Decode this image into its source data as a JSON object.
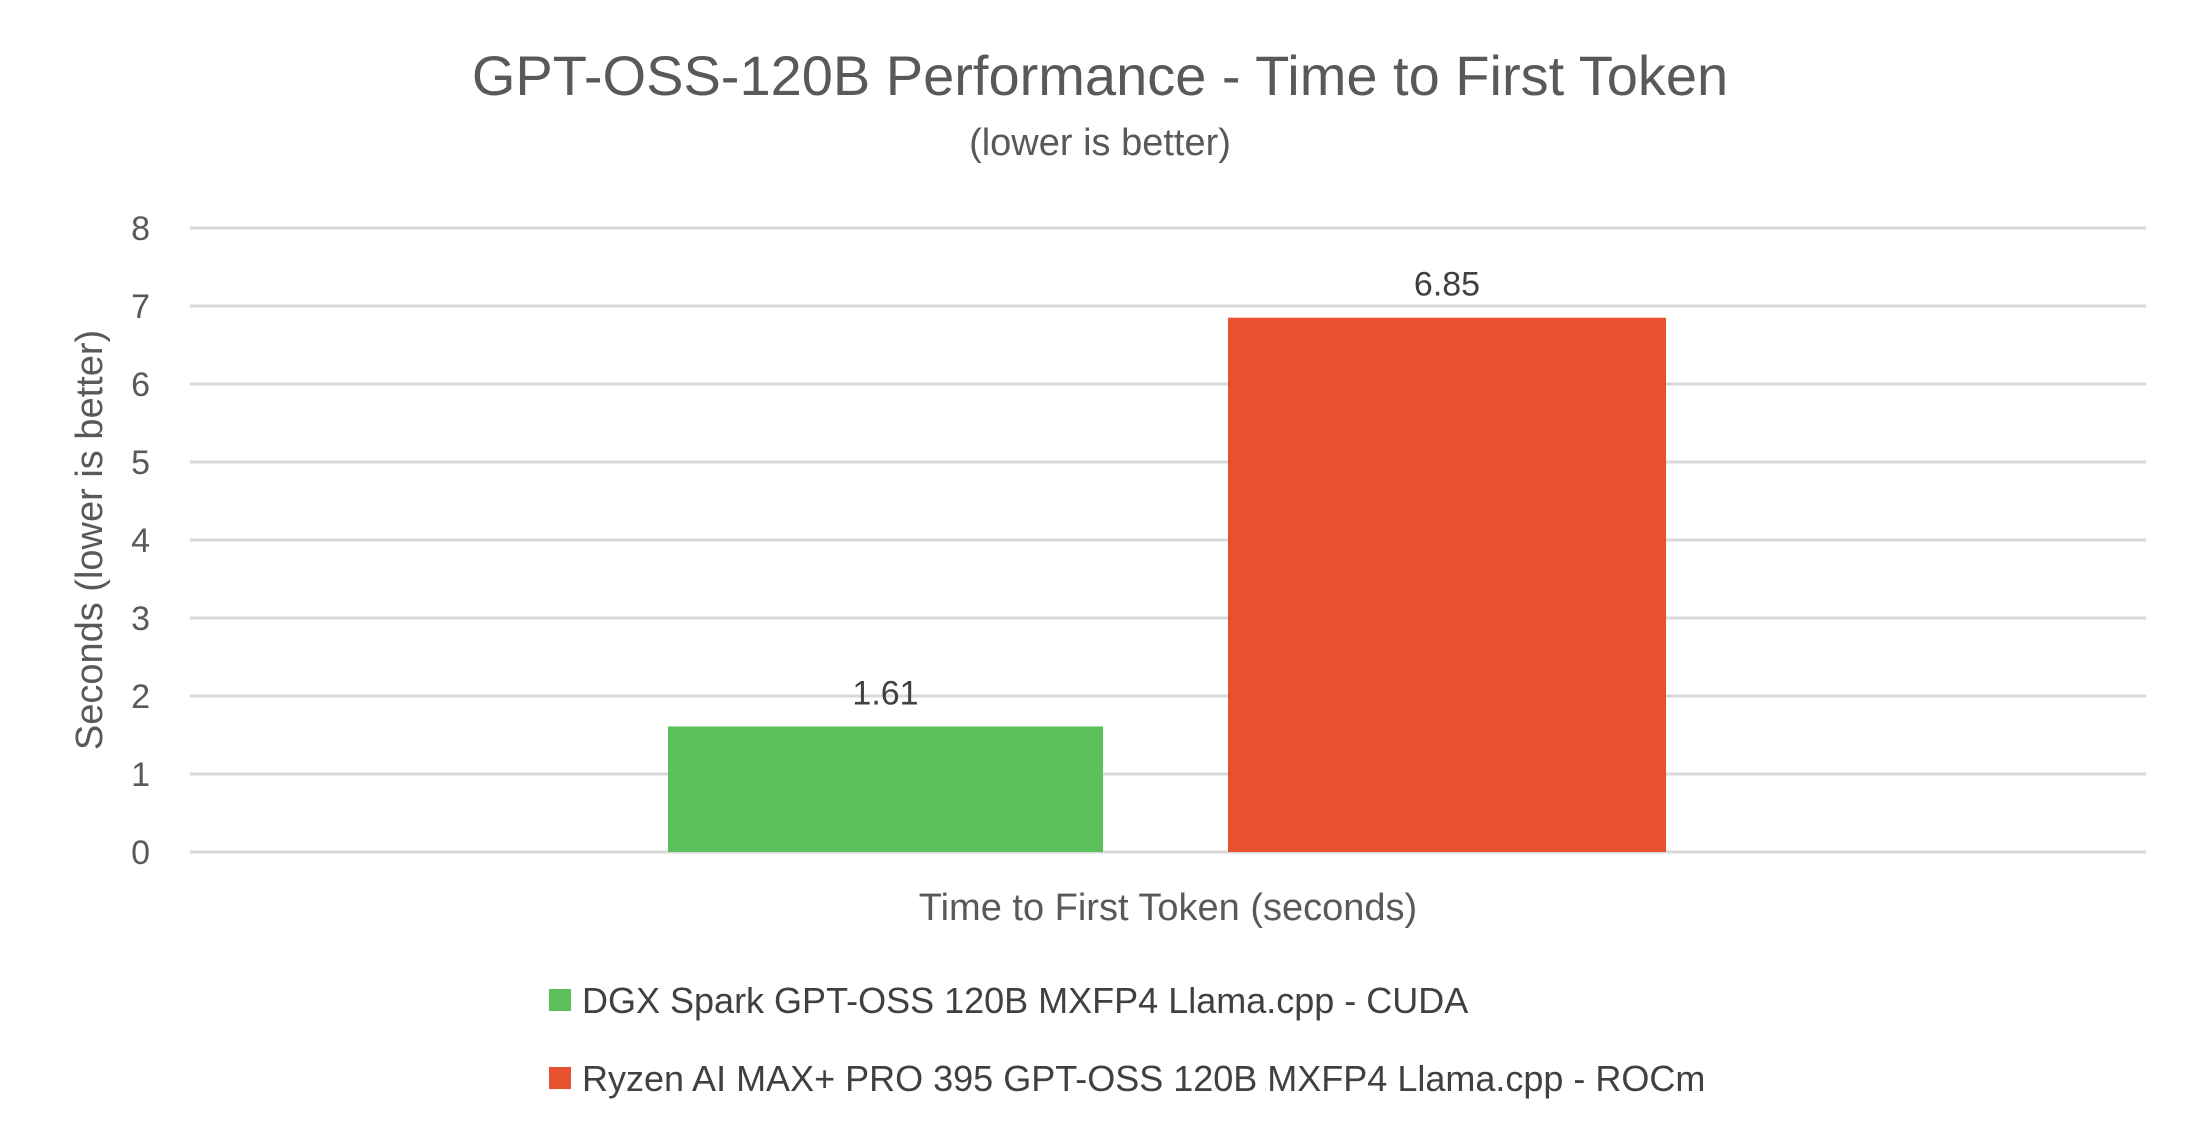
{
  "chart_data": {
    "type": "bar",
    "title": "GPT-OSS-120B Performance - Time to First Token",
    "subtitle": "(lower is better)",
    "xlabel": "Time to First Token (seconds)",
    "ylabel": "Seconds (lower is better)",
    "ylim": [
      0,
      8
    ],
    "yticks": [
      "0",
      "1",
      "2",
      "3",
      "4",
      "5",
      "6",
      "7",
      "8"
    ],
    "grid": true,
    "legend_position": "bottom",
    "categories": [
      "Time to First Token (seconds)"
    ],
    "series": [
      {
        "name": "DGX Spark GPT-OSS 120B MXFP4 Llama.cpp - CUDA",
        "values": [
          1.61
        ],
        "label": "1.61",
        "color": "#5cc05c"
      },
      {
        "name": "Ryzen AI MAX+ PRO 395 GPT-OSS 120B MXFP4 Llama.cpp - ROCm",
        "values": [
          6.85
        ],
        "label": "6.85",
        "color": "#e8512d"
      }
    ]
  }
}
